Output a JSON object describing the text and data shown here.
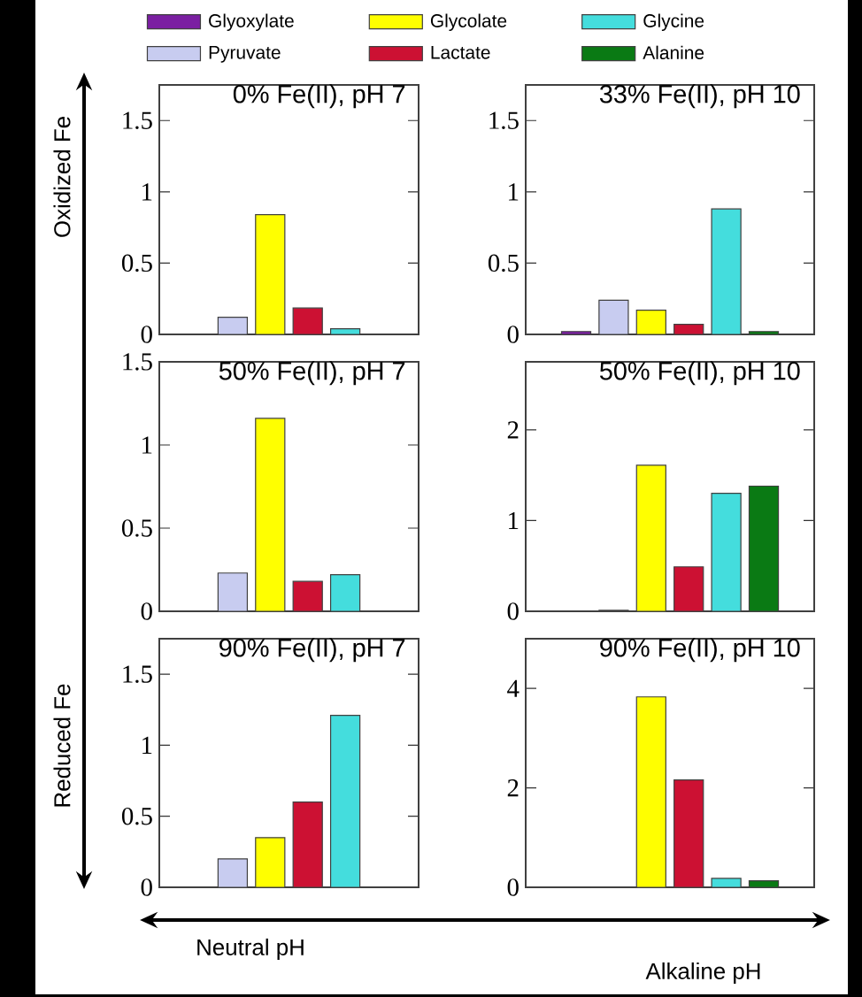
{
  "chart_data": [
    {
      "type": "bar",
      "title": "0% Fe(II), pH 7",
      "categories": [
        null
      ],
      "ylim": [
        0,
        1.75
      ],
      "yticks": [
        0,
        0.5,
        1,
        1.5
      ],
      "legend": "top",
      "annotations": [
        "Oxidized Fe",
        "Reduced Fe",
        "Neutral pH",
        "Alkaline pH"
      ],
      "series": [
        {
          "name": "Glyoxylate",
          "color": "#7b1fa2",
          "values": [
            0
          ]
        },
        {
          "name": "Pyruvate",
          "color": "#c8ccf0",
          "values": [
            0.12
          ]
        },
        {
          "name": "Glycolate",
          "color": "#ffff00",
          "values": [
            0.84
          ]
        },
        {
          "name": "Lactate",
          "color": "#cc1133",
          "values": [
            0.185
          ]
        },
        {
          "name": "Glycine",
          "color": "#44dddd",
          "values": [
            0.04
          ]
        },
        {
          "name": "Alanine",
          "color": "#0a7a14",
          "values": [
            0
          ]
        }
      ]
    },
    {
      "type": "bar",
      "title": "33% Fe(II), pH 10",
      "categories": [
        null,
        null,
        null,
        null,
        null,
        null
      ],
      "ylim": [
        0,
        1.75
      ],
      "yticks": [
        0,
        0.5,
        1,
        1.5
      ],
      "values": [
        0.02,
        0.24,
        0.17,
        0.07,
        0.88,
        0.02
      ],
      "colors": [
        "#7b1fa2",
        "#c8ccf0",
        "#ffff00",
        "#cc1133",
        "#44dddd",
        "#0a7a14"
      ]
    },
    {
      "type": "bar",
      "title": "50% Fe(II), pH 7",
      "categories": [
        null
      ],
      "ylim": [
        0,
        1.5
      ],
      "yticks": [
        0,
        0.5,
        1,
        1.5
      ],
      "series": [
        {
          "color": "#7b1fa2",
          "values": [
            0
          ]
        },
        {
          "color": "#c8ccf0",
          "values": [
            0.23
          ]
        },
        {
          "color": "#ffff00",
          "values": [
            1.16
          ]
        },
        {
          "color": "#cc1133",
          "values": [
            0.18
          ]
        },
        {
          "color": "#44dddd",
          "values": [
            0.22
          ]
        },
        {
          "color": "#0a7a14",
          "values": [
            0
          ]
        }
      ]
    },
    {
      "type": "bar",
      "title": "50% Fe(II), pH 10",
      "categories": [
        null,
        null,
        null,
        null,
        null,
        null
      ],
      "ylim": [
        0,
        2.75
      ],
      "yticks": [
        0,
        1,
        2
      ],
      "values": [
        0,
        0.01,
        1.61,
        0.49,
        1.3,
        1.38
      ],
      "colors": [
        "#7b1fa2",
        "#c8ccf0",
        "#ffff00",
        "#cc1133",
        "#44dddd",
        "#0a7a14"
      ]
    },
    {
      "type": "bar",
      "title": "90% Fe(II), pH 7",
      "categories": [
        null
      ],
      "ylim": [
        0,
        1.75
      ],
      "yticks": [
        0,
        0.5,
        1,
        1.5
      ],
      "series": [
        {
          "color": "#7b1fa2",
          "values": [
            0
          ]
        },
        {
          "color": "#c8ccf0",
          "values": [
            0.2
          ]
        },
        {
          "color": "#ffff00",
          "values": [
            0.35
          ]
        },
        {
          "color": "#cc1133",
          "values": [
            0.6
          ]
        },
        {
          "color": "#44dddd",
          "values": [
            1.21
          ]
        },
        {
          "color": "#0a7a14",
          "values": [
            0
          ]
        }
      ]
    },
    {
      "type": "bar",
      "title": "90% Fe(II), pH 10",
      "categories": [
        null,
        null,
        null,
        null,
        null,
        null
      ],
      "ylim": [
        0,
        5
      ],
      "yticks": [
        0,
        2,
        4
      ],
      "values": [
        0,
        0,
        3.83,
        2.16,
        0.18,
        0.13
      ],
      "colors": [
        "#7b1fa2",
        "#c8ccf0",
        "#ffff00",
        "#cc1133",
        "#44dddd",
        "#0a7a14"
      ]
    }
  ]
}
